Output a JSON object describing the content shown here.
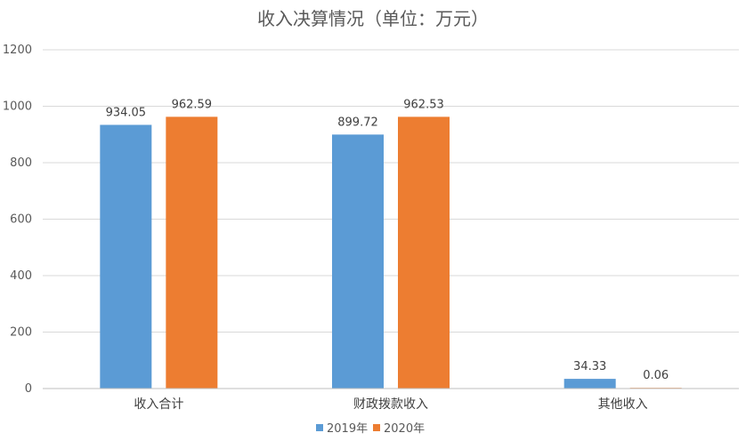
{
  "chart_data": {
    "type": "bar",
    "title": "收入决算情况（单位：万元）",
    "categories": [
      "收入合计",
      "财政拨款收入",
      "其他收入"
    ],
    "series": [
      {
        "name": "2019年",
        "color": "#5b9bd5",
        "values": [
          934.05,
          899.72,
          34.33
        ],
        "labels": [
          "934.05",
          "899.72",
          "34.33"
        ]
      },
      {
        "name": "2020年",
        "color": "#ed7d31",
        "values": [
          962.59,
          962.53,
          0.06
        ],
        "labels": [
          "962.59",
          "962.53",
          "0.06"
        ]
      }
    ],
    "ylim": [
      0,
      1200
    ],
    "yticks": [
      "0",
      "200",
      "400",
      "600",
      "800",
      "1000",
      "1200"
    ],
    "grid": true,
    "legend_position": "bottom"
  }
}
